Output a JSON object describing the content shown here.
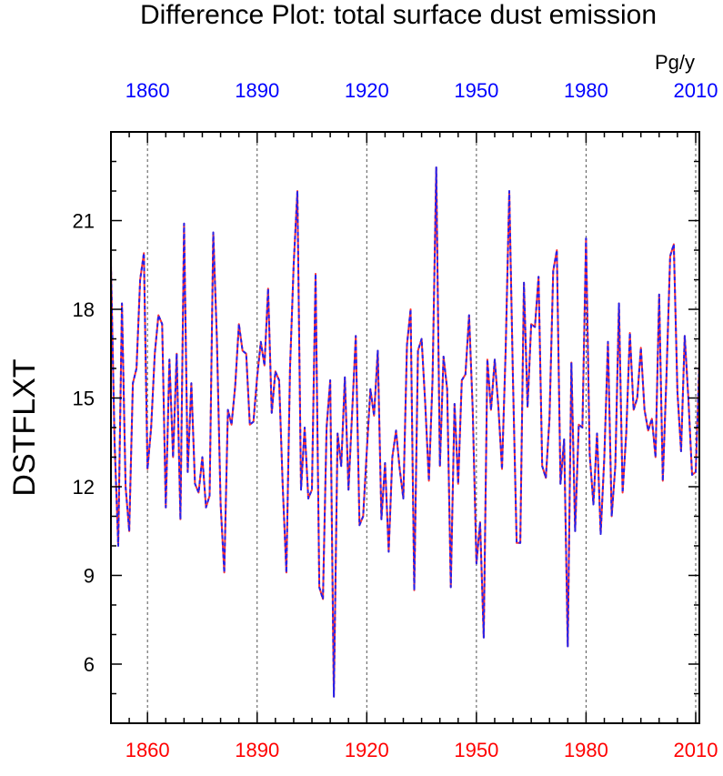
{
  "chart_data": {
    "type": "line",
    "title": "Difference Plot: total surface dust emission",
    "units": "Pg/y",
    "ylabel": "DSTFLXT",
    "xlabel": "",
    "xlim": [
      1850,
      2011
    ],
    "ylim": [
      4,
      24
    ],
    "grid": "vertical dashed at x ticks",
    "x_ticks": [
      1860,
      1890,
      1920,
      1950,
      1980,
      2010
    ],
    "y_ticks": [
      6,
      9,
      12,
      15,
      18,
      21
    ],
    "colors": {
      "top_axis_labels": "#0000ff",
      "bottom_axis_labels": "#ff0000",
      "series_a": "#ff3333",
      "series_b": "#2222ee"
    },
    "series": [
      {
        "name": "",
        "color": "#ff3333",
        "style": "solid"
      },
      {
        "name": "",
        "color": "#2222ee",
        "style": "dashed"
      }
    ],
    "x": [
      1850,
      1851,
      1852,
      1853,
      1854,
      1855,
      1856,
      1857,
      1858,
      1859,
      1860,
      1861,
      1862,
      1863,
      1864,
      1865,
      1866,
      1867,
      1868,
      1869,
      1870,
      1871,
      1872,
      1873,
      1874,
      1875,
      1876,
      1877,
      1878,
      1879,
      1880,
      1881,
      1882,
      1883,
      1884,
      1885,
      1886,
      1887,
      1888,
      1889,
      1890,
      1891,
      1892,
      1893,
      1894,
      1895,
      1896,
      1897,
      1898,
      1899,
      1900,
      1901,
      1902,
      1903,
      1904,
      1905,
      1906,
      1907,
      1908,
      1909,
      1910,
      1911,
      1912,
      1913,
      1914,
      1915,
      1916,
      1917,
      1918,
      1919,
      1920,
      1921,
      1922,
      1923,
      1924,
      1925,
      1926,
      1927,
      1928,
      1929,
      1930,
      1931,
      1932,
      1933,
      1934,
      1935,
      1936,
      1937,
      1938,
      1939,
      1940,
      1941,
      1942,
      1943,
      1944,
      1945,
      1946,
      1947,
      1948,
      1949,
      1950,
      1951,
      1952,
      1953,
      1954,
      1955,
      1956,
      1957,
      1958,
      1959,
      1960,
      1961,
      1962,
      1963,
      1964,
      1965,
      1966,
      1967,
      1968,
      1969,
      1970,
      1971,
      1972,
      1973,
      1974,
      1975,
      1976,
      1977,
      1978,
      1979,
      1980,
      1981,
      1982,
      1983,
      1984,
      1985,
      1986,
      1987,
      1988,
      1989,
      1990,
      1991,
      1992,
      1993,
      1994,
      1995,
      1996,
      1997,
      1998,
      1999,
      2000,
      2001,
      2002,
      2003,
      2004,
      2005,
      2006,
      2007,
      2008,
      2009,
      2010,
      2011
    ],
    "values": [
      19.5,
      13.5,
      10.0,
      18.2,
      12.0,
      10.5,
      15.5,
      16.0,
      19.0,
      19.9,
      12.6,
      14.0,
      16.5,
      17.8,
      17.5,
      11.3,
      16.3,
      13.0,
      16.5,
      10.9,
      20.9,
      12.5,
      15.5,
      12.1,
      11.8,
      13.0,
      11.3,
      11.7,
      20.6,
      17.0,
      11.4,
      9.1,
      14.6,
      14.1,
      15.4,
      17.5,
      16.6,
      16.5,
      14.1,
      14.2,
      15.7,
      16.9,
      16.1,
      18.7,
      14.5,
      15.9,
      15.6,
      12.0,
      9.1,
      16.0,
      19.5,
      22.0,
      11.9,
      14.0,
      11.6,
      11.9,
      19.2,
      8.6,
      8.2,
      14.0,
      15.6,
      4.9,
      13.8,
      12.7,
      15.7,
      11.9,
      14.5,
      17.1,
      10.7,
      11.0,
      13.2,
      15.3,
      14.4,
      16.6,
      10.9,
      12.8,
      9.8,
      13.0,
      13.9,
      12.6,
      11.6,
      16.8,
      18.0,
      8.5,
      16.6,
      17.0,
      14.8,
      12.2,
      15.6,
      22.8,
      12.7,
      16.4,
      15.3,
      8.6,
      14.8,
      12.1,
      15.6,
      15.8,
      17.8,
      14.6,
      9.4,
      10.8,
      6.9,
      16.3,
      14.6,
      16.3,
      14.7,
      12.6,
      16.6,
      22.0,
      15.7,
      10.1,
      10.1,
      18.9,
      14.7,
      17.5,
      17.4,
      19.1,
      12.7,
      12.3,
      14.3,
      19.3,
      20.0,
      12.1,
      13.6,
      6.6,
      16.2,
      10.5,
      14.1,
      14.0,
      20.4,
      13.1,
      11.4,
      13.8,
      10.4,
      13.0,
      16.9,
      11.0,
      12.7,
      18.2,
      11.8,
      13.8,
      17.2,
      14.6,
      15.0,
      16.7,
      14.6,
      13.9,
      14.3,
      13.0,
      18.5,
      12.2,
      15.7,
      19.8,
      20.2,
      15.2,
      13.2,
      17.1,
      15.0,
      12.4,
      12.5,
      16.2
    ]
  }
}
